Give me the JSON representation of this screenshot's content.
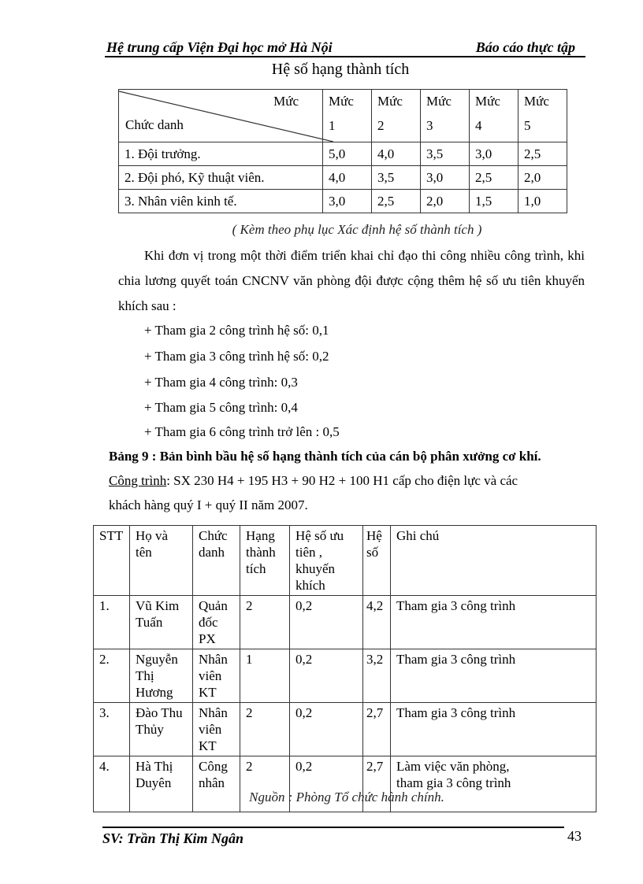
{
  "header": {
    "left": "Hệ trung cấp Viện Đại học mở Hà Nội",
    "right": "Báo cáo thực tập"
  },
  "table1": {
    "title": "Hệ số hạng thành tích",
    "corner_top": "Mức",
    "corner_bottom": "Chức danh",
    "columns": [
      {
        "top": "Mức",
        "bottom": "1"
      },
      {
        "top": "Mức",
        "bottom": "2"
      },
      {
        "top": "Mức",
        "bottom": "3"
      },
      {
        "top": "Mức",
        "bottom": "4"
      },
      {
        "top": "Mức",
        "bottom": "5"
      }
    ],
    "rows": [
      {
        "label": "1. Đội trưởng.",
        "values": [
          "5,0",
          "4,0",
          "3,5",
          "3,0",
          "2,5"
        ]
      },
      {
        "label": "2. Đội phó, Kỹ thuật viên.",
        "values": [
          "4,0",
          "3,5",
          "3,0",
          "2,5",
          "2,0"
        ]
      },
      {
        "label": "3. Nhân viên kinh tế.",
        "values": [
          "3,0",
          "2,5",
          "2,0",
          "1,5",
          "1,0"
        ]
      }
    ],
    "caption": "( Kèm theo phụ lục Xác định hệ số thành tích )"
  },
  "body": {
    "paragraph": "Khi đơn vị trong một thời điểm triển khai chỉ đạo thi công nhiều  công trình, khi chia lương quyết toán CNCNV văn phòng đội được cộng thêm hệ số ưu tiên khuyến khích sau :",
    "bullets": [
      "+ Tham gia 2 công trình hệ số: 0,1",
      "+ Tham gia 3 công trình hệ số: 0,2",
      "+ Tham gia 4 công trình: 0,3",
      "+ Tham gia 5 công trình: 0,4",
      "+ Tham gia 6 công trình trở lên : 0,5"
    ]
  },
  "table2": {
    "heading": "Bảng 9 : Bản bình bầu hệ số hạng thành tích của  cán bộ phân xưởng cơ khí.",
    "project_label": "Công trình",
    "project_text": ": SX 230 H4 + 195  H3 + 90 H2  + 100 H1  cấp cho điện lực và các",
    "project_text2": "khách hàng quý I + quý II năm 2007.",
    "columns": [
      "STT",
      "Họ và tên",
      "Chức danh",
      "Hạng thành tích",
      "Hệ số ưu tiên , khuyến khích",
      "Hệ số",
      "Ghi chú"
    ],
    "rows": [
      [
        "1.",
        "Vũ Kim Tuấn",
        "Quản đốc PX",
        "2",
        "0,2",
        "4,2",
        "Tham gia 3 công trình"
      ],
      [
        "2.",
        "Nguyễn Thị Hương",
        "Nhân viên KT",
        "1",
        "0,2",
        "3,2",
        "Tham gia 3 công trình"
      ],
      [
        "3.",
        "Đào Thu Thủy",
        "Nhân viên KT",
        "2",
        "0,2",
        "2,7",
        "Tham gia 3 công trình"
      ],
      [
        "4.",
        "Hà Thị Duyên",
        "Công nhân",
        "2",
        "0,2",
        "2,7",
        "Làm việc văn phòng, tham gia 3 công trình"
      ]
    ],
    "source": "Nguồn : Phòng Tổ chức hành chính."
  },
  "footer": {
    "left": "SV: Trần Thị Kim Ngân",
    "page": "43"
  }
}
